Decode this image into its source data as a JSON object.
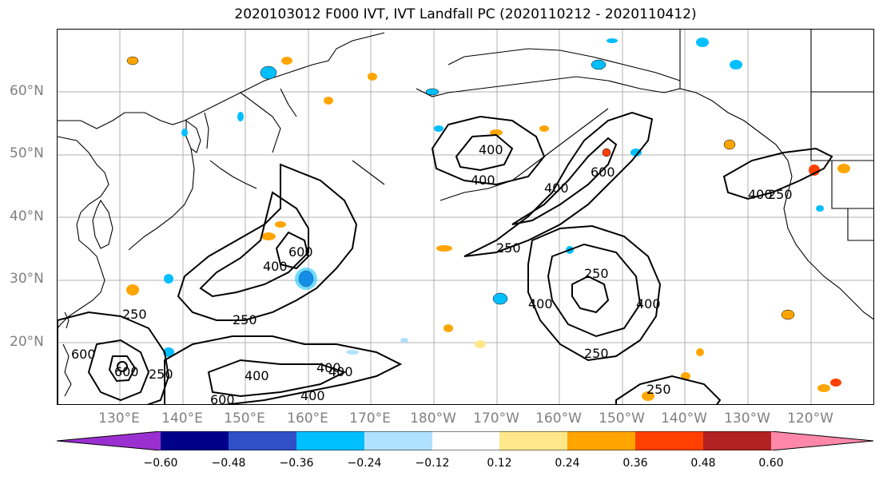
{
  "title": "2020103012 F000 IVT, IVT Landfall PC (2020110212 - 2020110412)",
  "lat_labels": [
    "60°N",
    "50°N",
    "40°N",
    "30°N",
    "20°N"
  ],
  "lon_labels": [
    "130°E",
    "140°E",
    "150°E",
    "160°E",
    "170°E",
    "180°W",
    "170°W",
    "160°W",
    "150°W",
    "140°W",
    "130°W",
    "120°W"
  ],
  "contour_labels": [
    "400",
    "400",
    "400",
    "600",
    "250",
    "400",
    "400",
    "250",
    "250",
    "600",
    "250",
    "400",
    "400",
    "250",
    "250",
    "400",
    "600",
    "250",
    "400",
    "600",
    "400",
    "250",
    "600",
    "400"
  ],
  "colorbar": {
    "ticks": [
      "−0.60",
      "−0.48",
      "−0.36",
      "−0.24",
      "−0.12",
      "0.12",
      "0.24",
      "0.36",
      "0.48",
      "0.60"
    ],
    "colors": [
      "#9b30d0",
      "#00008b",
      "#3050c8",
      "#00bfff",
      "#b0e2ff",
      "#ffffff",
      "#ffe88a",
      "#ffa500",
      "#ff4000",
      "#b22222",
      "#ff88aa"
    ]
  }
}
